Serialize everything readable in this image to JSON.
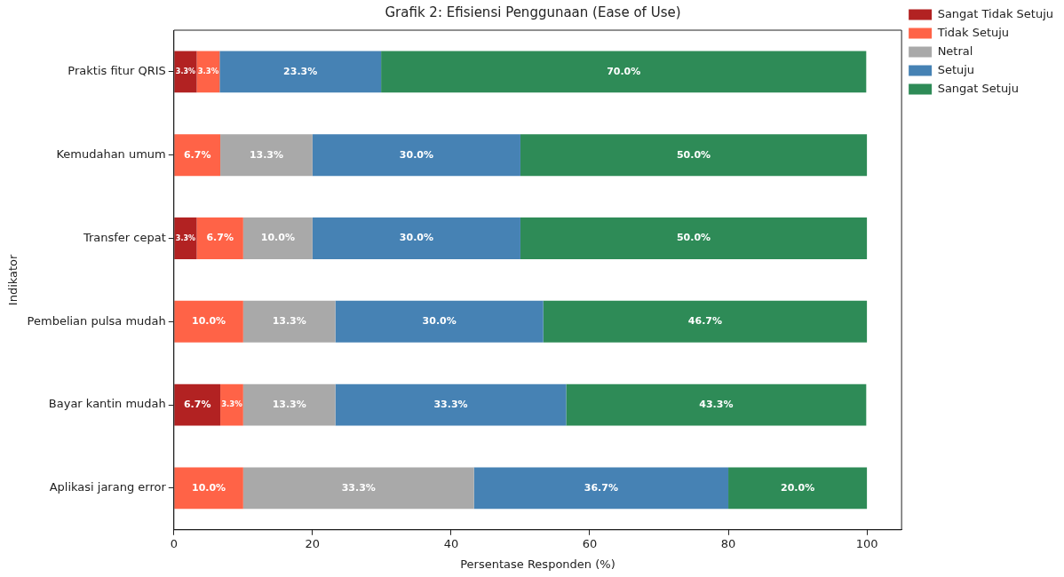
{
  "chart_data": {
    "type": "bar",
    "orientation": "horizontal",
    "stacked": true,
    "title": "Grafik 2: Efisiensi Penggunaan (Ease of Use)",
    "xlabel": "Persentase Responden (%)",
    "ylabel": "Indikator",
    "categories": [
      "Praktis fitur QRIS",
      "Kemudahan umum",
      "Transfer cepat",
      "Pembelian pulsa mudah",
      "Bayar kantin mudah",
      "Aplikasi jarang error"
    ],
    "series": [
      {
        "name": "Sangat Tidak Setuju",
        "color": "#b22222",
        "values": [
          3.3,
          null,
          3.3,
          null,
          6.7,
          null
        ],
        "value_labels": [
          "3.3%",
          null,
          "3.3%",
          null,
          "6.7%",
          null
        ]
      },
      {
        "name": "Tidak Setuju",
        "color": "#ff6347",
        "values": [
          3.3,
          6.7,
          6.7,
          10.0,
          3.3,
          10.0
        ],
        "value_labels": [
          "3.3%",
          "6.7%",
          "6.7%",
          "10.0%",
          "3.3%",
          "10.0%"
        ]
      },
      {
        "name": "Netral",
        "color": "#a9a9a9",
        "values": [
          null,
          13.3,
          10.0,
          13.3,
          13.3,
          33.3
        ],
        "value_labels": [
          null,
          "13.3%",
          "10.0%",
          "13.3%",
          "13.3%",
          "33.3%"
        ]
      },
      {
        "name": "Setuju",
        "color": "#4682b4",
        "values": [
          23.3,
          30.0,
          30.0,
          30.0,
          33.3,
          36.7
        ],
        "value_labels": [
          "23.3%",
          "30.0%",
          "30.0%",
          "30.0%",
          "33.3%",
          "36.7%"
        ]
      },
      {
        "name": "Sangat Setuju",
        "color": "#2e8b57",
        "values": [
          70.0,
          50.0,
          50.0,
          46.7,
          43.3,
          20.0
        ],
        "value_labels": [
          "70.0%",
          "50.0%",
          "50.0%",
          "46.7%",
          "43.3%",
          "20.0%"
        ]
      }
    ],
    "xlim": [
      0,
      105
    ],
    "xticks": [
      0,
      20,
      40,
      60,
      80,
      100
    ],
    "grid": false,
    "legend": "top right"
  }
}
